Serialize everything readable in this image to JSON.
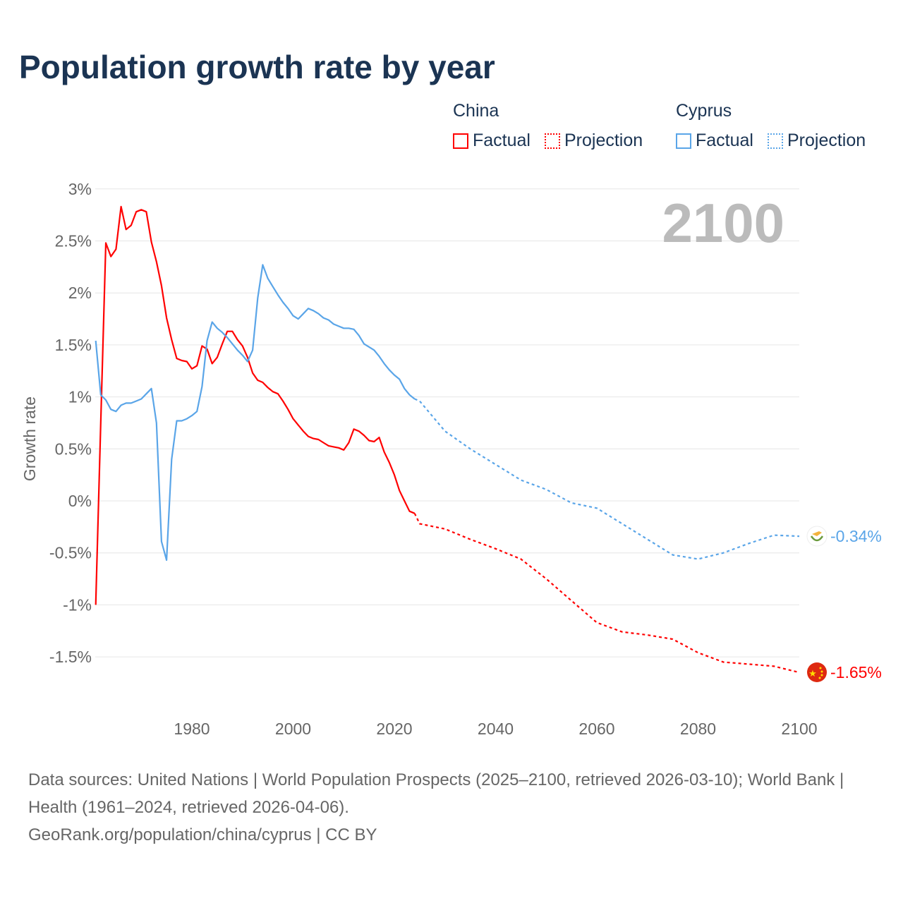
{
  "title": "Population growth rate by year",
  "legend": {
    "groups": [
      {
        "name": "China",
        "color": "#ff0000",
        "factual": "Factual",
        "projection": "Projection"
      },
      {
        "name": "Cyprus",
        "color": "#5aa5e8",
        "factual": "Factual",
        "projection": "Projection"
      }
    ]
  },
  "chart_data": {
    "type": "line",
    "title": "Population growth rate by year",
    "ylabel": "Growth rate",
    "xlabel": "",
    "ylim": [
      -1.5,
      3
    ],
    "xlim": [
      1961,
      2100
    ],
    "yticks": [
      "3%",
      "2.5%",
      "2%",
      "1.5%",
      "1%",
      "0.5%",
      "0%",
      "-0.5%",
      "-1%",
      "-1.5%"
    ],
    "ytick_values": [
      3,
      2.5,
      2,
      1.5,
      1,
      0.5,
      0,
      -0.5,
      -1,
      -1.5
    ],
    "xticks": [
      "1980",
      "2000",
      "2020",
      "2040",
      "2060",
      "2080",
      "2100"
    ],
    "xtick_values": [
      1980,
      2000,
      2020,
      2040,
      2060,
      2080,
      2100
    ],
    "year_label": "2100",
    "grid": true,
    "legend_position": "top-right",
    "series": [
      {
        "name": "China",
        "color": "#ff0000",
        "end_label": "-1.65%",
        "factual": {
          "x": [
            1961,
            1962,
            1963,
            1964,
            1965,
            1966,
            1967,
            1968,
            1969,
            1970,
            1971,
            1972,
            1973,
            1974,
            1975,
            1976,
            1977,
            1978,
            1979,
            1980,
            1981,
            1982,
            1983,
            1984,
            1985,
            1986,
            1987,
            1988,
            1989,
            1990,
            1991,
            1992,
            1993,
            1994,
            1995,
            1996,
            1997,
            1998,
            1999,
            2000,
            2001,
            2002,
            2003,
            2004,
            2005,
            2006,
            2007,
            2008,
            2009,
            2010,
            2011,
            2012,
            2013,
            2014,
            2015,
            2016,
            2017,
            2018,
            2019,
            2020,
            2021,
            2022,
            2023,
            2024
          ],
          "y": [
            -1.0,
            0.75,
            2.48,
            2.35,
            2.42,
            2.83,
            2.61,
            2.65,
            2.78,
            2.8,
            2.78,
            2.49,
            2.3,
            2.07,
            1.76,
            1.55,
            1.37,
            1.35,
            1.34,
            1.27,
            1.3,
            1.49,
            1.46,
            1.32,
            1.38,
            1.51,
            1.63,
            1.63,
            1.55,
            1.49,
            1.38,
            1.23,
            1.16,
            1.14,
            1.09,
            1.05,
            1.03,
            0.96,
            0.88,
            0.79,
            0.73,
            0.67,
            0.62,
            0.6,
            0.59,
            0.56,
            0.53,
            0.52,
            0.51,
            0.49,
            0.56,
            0.69,
            0.67,
            0.63,
            0.58,
            0.57,
            0.61,
            0.47,
            0.37,
            0.25,
            0.1,
            0.0,
            -0.1,
            -0.12
          ]
        },
        "projection": {
          "x": [
            2024,
            2025,
            2030,
            2035,
            2040,
            2045,
            2050,
            2055,
            2060,
            2065,
            2070,
            2075,
            2080,
            2085,
            2090,
            2095,
            2100
          ],
          "y": [
            -0.12,
            -0.22,
            -0.27,
            -0.37,
            -0.46,
            -0.56,
            -0.75,
            -0.96,
            -1.17,
            -1.26,
            -1.29,
            -1.33,
            -1.46,
            -1.55,
            -1.57,
            -1.59,
            -1.65
          ]
        }
      },
      {
        "name": "Cyprus",
        "color": "#5aa5e8",
        "end_label": "-0.34%",
        "factual": {
          "x": [
            1961,
            1962,
            1963,
            1964,
            1965,
            1966,
            1967,
            1968,
            1969,
            1970,
            1971,
            1972,
            1973,
            1974,
            1975,
            1976,
            1977,
            1978,
            1979,
            1980,
            1981,
            1982,
            1983,
            1984,
            1985,
            1986,
            1987,
            1988,
            1989,
            1990,
            1991,
            1992,
            1993,
            1994,
            1995,
            1996,
            1997,
            1998,
            1999,
            2000,
            2001,
            2002,
            2003,
            2004,
            2005,
            2006,
            2007,
            2008,
            2009,
            2010,
            2011,
            2012,
            2013,
            2014,
            2015,
            2016,
            2017,
            2018,
            2019,
            2020,
            2021,
            2022,
            2023,
            2024
          ],
          "y": [
            1.54,
            1.02,
            0.97,
            0.88,
            0.86,
            0.92,
            0.94,
            0.94,
            0.96,
            0.98,
            1.03,
            1.08,
            0.75,
            -0.39,
            -0.57,
            0.4,
            0.77,
            0.77,
            0.79,
            0.82,
            0.86,
            1.1,
            1.54,
            1.72,
            1.66,
            1.62,
            1.57,
            1.51,
            1.45,
            1.4,
            1.34,
            1.45,
            1.95,
            2.27,
            2.14,
            2.06,
            1.98,
            1.91,
            1.85,
            1.78,
            1.75,
            1.8,
            1.85,
            1.83,
            1.8,
            1.76,
            1.74,
            1.7,
            1.68,
            1.66,
            1.66,
            1.65,
            1.59,
            1.51,
            1.48,
            1.45,
            1.39,
            1.32,
            1.26,
            1.21,
            1.17,
            1.08,
            1.02,
            0.98
          ]
        },
        "projection": {
          "x": [
            2024,
            2025,
            2030,
            2035,
            2040,
            2045,
            2050,
            2055,
            2060,
            2065,
            2070,
            2075,
            2080,
            2085,
            2090,
            2095,
            2100
          ],
          "y": [
            0.98,
            0.96,
            0.67,
            0.5,
            0.35,
            0.2,
            0.11,
            -0.02,
            -0.07,
            -0.22,
            -0.37,
            -0.52,
            -0.56,
            -0.5,
            -0.41,
            -0.33,
            -0.34
          ]
        }
      }
    ]
  },
  "footer": {
    "sources": "Data sources: United Nations | World Population Prospects (2025–2100, retrieved 2026-03-10); World Bank | Health (1961–2024, retrieved 2026-04-06).",
    "link": "GeoRank.org/population/china/cyprus | CC BY"
  }
}
